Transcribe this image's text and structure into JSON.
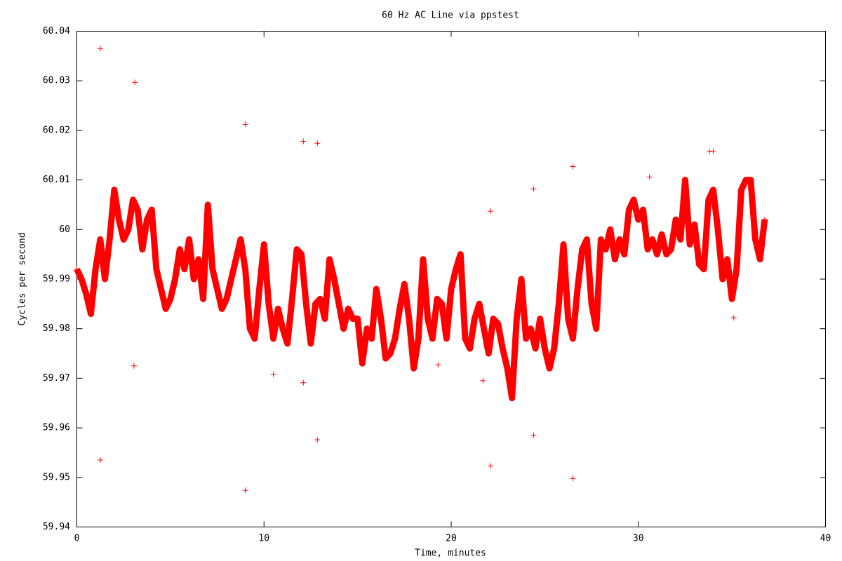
{
  "chart_data": {
    "type": "scatter",
    "title": "60 Hz AC Line via ppstest",
    "xlabel": "Time, minutes",
    "ylabel": "Cycles per second",
    "xlim": [
      0,
      40
    ],
    "xticks": [
      0,
      10,
      20,
      30,
      40
    ],
    "ylim": [
      59.94,
      60.04
    ],
    "yticks": [
      59.94,
      59.95,
      59.96,
      59.97,
      59.98,
      59.99,
      60,
      60.01,
      60.02,
      60.03,
      60.04
    ],
    "series": [
      {
        "color": "#ff0000",
        "connect": true,
        "x": [
          0,
          0.25,
          0.5,
          0.75,
          1,
          1.25,
          1.5,
          1.75,
          2,
          2.25,
          2.5,
          2.75,
          3,
          3.25,
          3.5,
          3.75,
          4,
          4.25,
          4.5,
          4.75,
          5,
          5.25,
          5.5,
          5.75,
          6,
          6.25,
          6.5,
          6.75,
          7,
          7.25,
          7.5,
          7.75,
          8,
          8.25,
          8.5,
          8.75,
          9,
          9.25,
          9.5,
          9.75,
          10,
          10.25,
          10.5,
          10.75,
          11,
          11.25,
          11.5,
          11.75,
          12,
          12.25,
          12.5,
          12.75,
          13,
          13.25,
          13.5,
          13.75,
          14,
          14.25,
          14.5,
          14.75,
          15,
          15.25,
          15.5,
          15.75,
          16,
          16.25,
          16.5,
          16.75,
          17,
          17.25,
          17.5,
          17.75,
          18,
          18.25,
          18.5,
          18.75,
          19,
          19.25,
          19.5,
          19.75,
          20,
          20.25,
          20.5,
          20.75,
          21,
          21.25,
          21.5,
          21.75,
          22,
          22.25,
          22.5,
          22.75,
          23,
          23.25,
          23.5,
          23.75,
          24,
          24.25,
          24.5,
          24.75,
          25,
          25.25,
          25.5,
          25.75,
          26,
          26.25,
          26.5,
          26.75,
          27,
          27.25,
          27.5,
          27.75,
          28,
          28.25,
          28.5,
          28.75,
          29,
          29.25,
          29.5,
          29.75,
          30,
          30.25,
          30.5,
          30.75,
          31,
          31.25,
          31.5,
          31.75,
          32,
          32.25,
          32.5,
          32.75,
          33,
          33.25,
          33.5,
          33.75,
          34,
          34.25,
          34.5,
          34.75,
          35,
          35.25,
          35.5,
          35.75,
          36,
          36.25,
          36.5,
          36.75
        ],
        "values": [
          59.992,
          59.99,
          59.987,
          59.983,
          59.992,
          59.998,
          59.99,
          59.998,
          60.008,
          60.002,
          59.998,
          60.0,
          60.006,
          60.004,
          59.996,
          60.002,
          60.004,
          59.992,
          59.988,
          59.984,
          59.986,
          59.99,
          59.996,
          59.992,
          59.998,
          59.99,
          59.994,
          59.986,
          60.005,
          59.992,
          59.988,
          59.984,
          59.986,
          59.99,
          59.994,
          59.998,
          59.992,
          59.98,
          59.978,
          59.988,
          59.997,
          59.985,
          59.978,
          59.984,
          59.98,
          59.977,
          59.986,
          59.996,
          59.995,
          59.985,
          59.977,
          59.985,
          59.986,
          59.982,
          59.994,
          59.99,
          59.985,
          59.98,
          59.984,
          59.982,
          59.982,
          59.973,
          59.98,
          59.978,
          59.988,
          59.982,
          59.974,
          59.975,
          59.978,
          59.984,
          59.989,
          59.982,
          59.972,
          59.978,
          59.994,
          59.982,
          59.978,
          59.986,
          59.985,
          59.978,
          59.988,
          59.992,
          59.995,
          59.978,
          59.976,
          59.982,
          59.985,
          59.98,
          59.975,
          59.982,
          59.981,
          59.976,
          59.972,
          59.966,
          59.982,
          59.99,
          59.978,
          59.98,
          59.976,
          59.982,
          59.976,
          59.972,
          59.976,
          59.985,
          59.997,
          59.982,
          59.978,
          59.988,
          59.996,
          59.998,
          59.985,
          59.98,
          59.998,
          59.996,
          60.0,
          59.994,
          59.998,
          59.995,
          60.004,
          60.006,
          60.002,
          60.004,
          59.996,
          59.998,
          59.995,
          59.999,
          59.995,
          59.996,
          60.002,
          59.998,
          60.01,
          59.997,
          60.001,
          59.993,
          59.992,
          60.006,
          60.008,
          60.0,
          59.99,
          59.994,
          59.986,
          59.992,
          60.008,
          60.01,
          60.01,
          59.998,
          59.994,
          60.002
        ]
      },
      {
        "color": "#ff0000",
        "connect": false,
        "x": [
          1.25,
          3.1,
          1.25,
          3.05,
          9.0,
          9.0,
          12.1,
          12.85,
          12.1,
          12.85,
          22.1,
          22.1,
          21.7,
          24.4,
          24.4,
          26.5,
          26.5,
          33.8,
          34.0,
          30.6,
          35.1,
          10.5,
          19.3
        ],
        "values": [
          60.0365,
          60.0297,
          59.9535,
          59.9725,
          60.0212,
          59.9474,
          60.0178,
          60.0174,
          59.9691,
          59.9576,
          60.0037,
          59.9523,
          59.9695,
          60.0082,
          59.9585,
          60.0127,
          59.9498,
          60.0157,
          60.0158,
          60.0106,
          59.9822,
          59.9708,
          59.9727
        ]
      }
    ]
  }
}
